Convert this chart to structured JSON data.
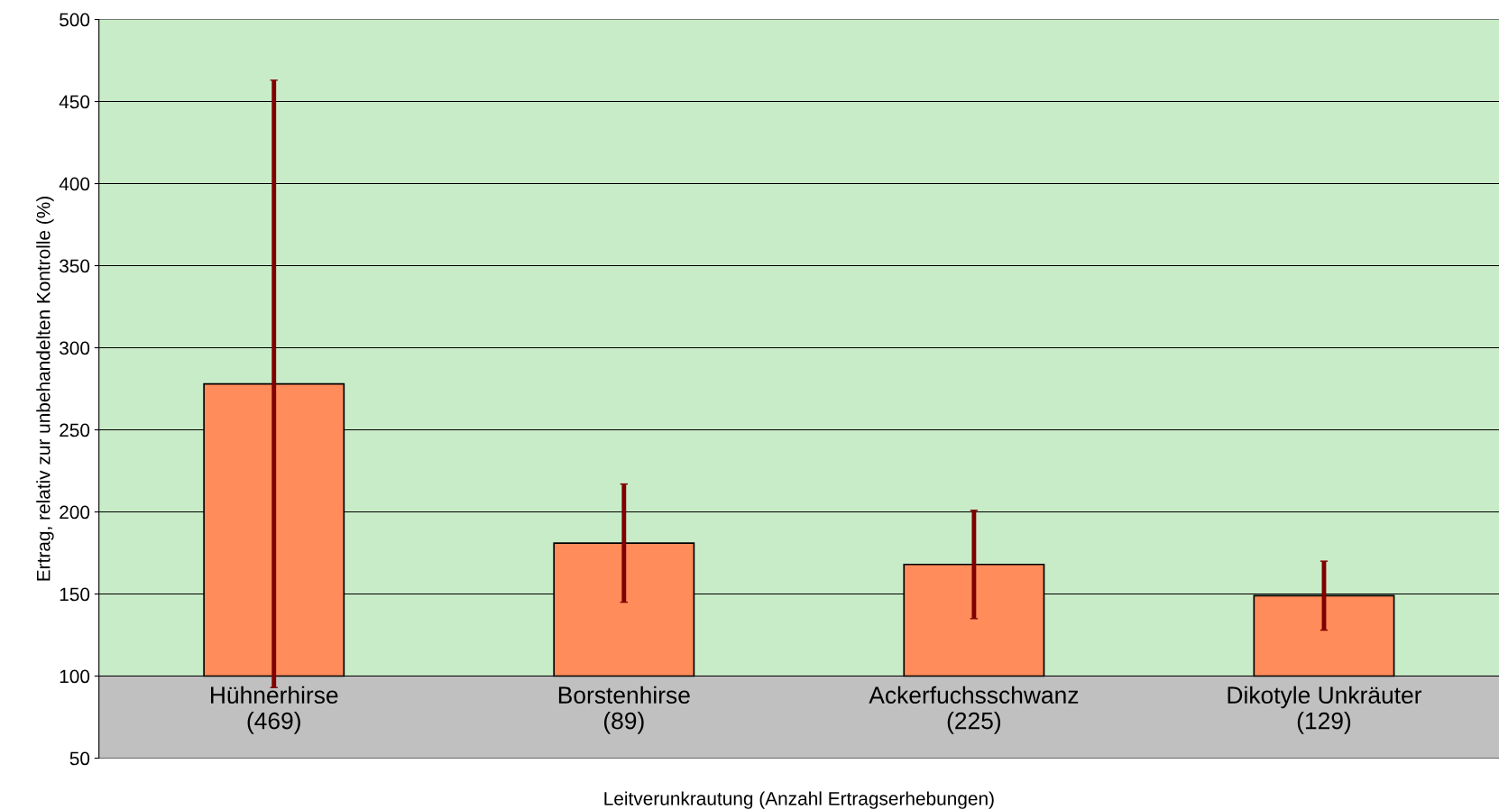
{
  "chart_data": {
    "type": "bar",
    "categories": [
      "Hühnerhirse\n(469)",
      "Borstenhirse\n(89)",
      "Ackerfuchsschwanz\n(225)",
      "Dikotyle Unkräuter\n(129)"
    ],
    "base": [
      100,
      100,
      100,
      100
    ],
    "values": [
      178,
      81,
      68,
      49
    ],
    "errors": [
      185,
      36,
      33,
      21
    ],
    "color": "#ff8c5a",
    "ylabel": "Ertrag, relativ zur unbehandelten Kontrolle (%)",
    "xlabel": "Leitverunkrautung (Anzahl Ertragserhebungen)",
    "ylim": [
      50,
      500
    ],
    "yticks": [
      50,
      100,
      150,
      200,
      250,
      300,
      350,
      400,
      450,
      500
    ],
    "grid": "y",
    "legend": false
  }
}
